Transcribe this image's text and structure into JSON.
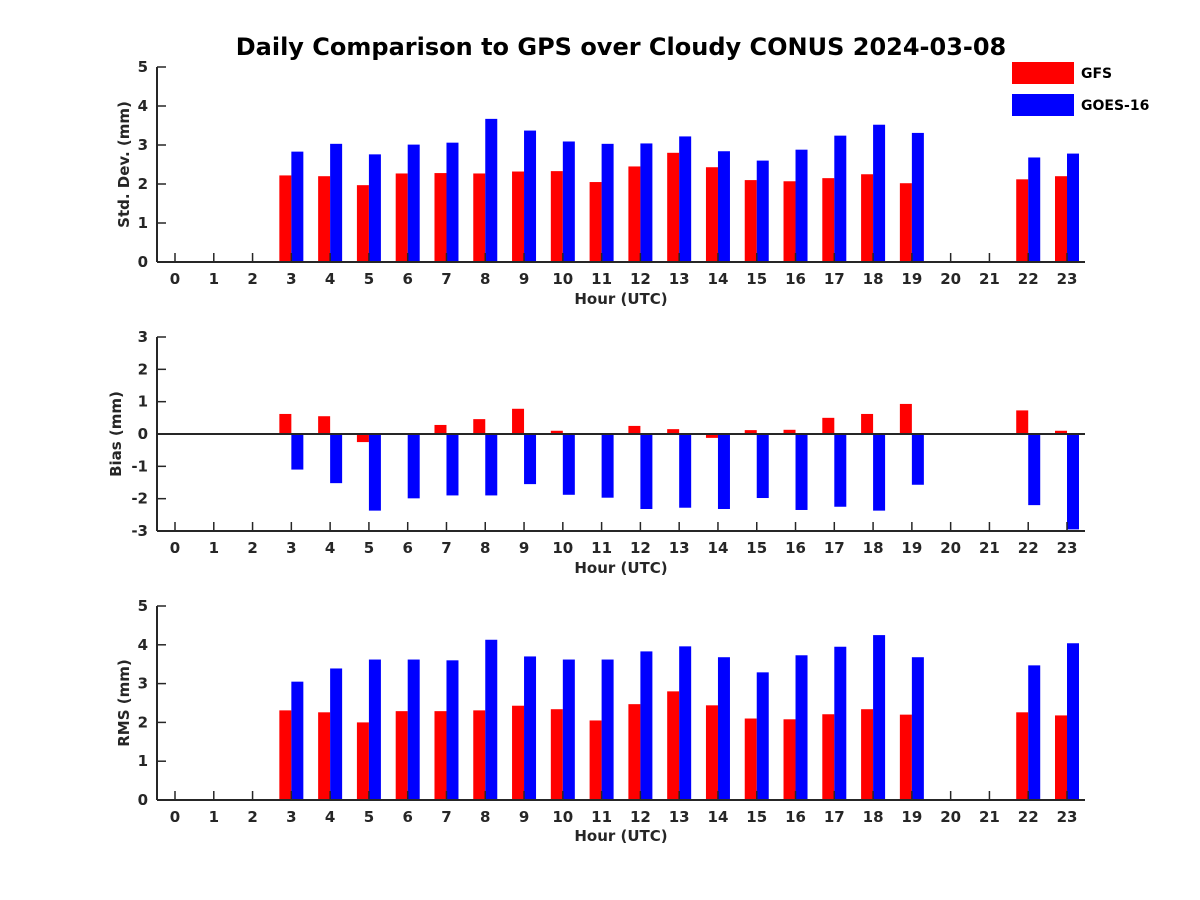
{
  "chart_data": {
    "type": "bar",
    "title": "Daily Comparison to GPS over Cloudy CONUS 2024-03-08",
    "categories": [
      "0",
      "1",
      "2",
      "3",
      "4",
      "5",
      "6",
      "7",
      "8",
      "9",
      "10",
      "11",
      "12",
      "13",
      "14",
      "15",
      "16",
      "17",
      "18",
      "19",
      "20",
      "21",
      "22",
      "23"
    ],
    "legend": {
      "placement": "top-right",
      "entries": [
        {
          "name": "GFS",
          "color": "#ff0000"
        },
        {
          "name": "GOES-16",
          "color": "#0000ff"
        }
      ]
    },
    "panels": [
      {
        "id": "std",
        "xlabel": "Hour (UTC)",
        "ylabel": "Std. Dev. (mm)",
        "ylim": [
          0,
          5
        ],
        "yticks": [
          "0",
          "1",
          "2",
          "3",
          "4",
          "5"
        ],
        "series": [
          {
            "name": "GFS",
            "color": "#ff0000",
            "values": [
              null,
              null,
              null,
              2.22,
              2.2,
              1.97,
              2.27,
              2.28,
              2.27,
              2.32,
              2.33,
              2.05,
              2.45,
              2.8,
              2.43,
              2.1,
              2.07,
              2.15,
              2.25,
              2.02,
              null,
              null,
              2.12,
              2.2
            ]
          },
          {
            "name": "GOES-16",
            "color": "#0000ff",
            "values": [
              null,
              null,
              null,
              2.83,
              3.03,
              2.76,
              3.01,
              3.06,
              3.67,
              3.37,
              3.09,
              3.03,
              3.04,
              3.22,
              2.84,
              2.6,
              2.88,
              3.24,
              3.52,
              3.31,
              null,
              null,
              2.68,
              2.78
            ]
          }
        ]
      },
      {
        "id": "bias",
        "xlabel": "Hour (UTC)",
        "ylabel": "Bias (mm)",
        "ylim": [
          -3,
          3
        ],
        "yticks": [
          "-3",
          "-2",
          "-1",
          "0",
          "1",
          "2",
          "3"
        ],
        "series": [
          {
            "name": "GFS",
            "color": "#ff0000",
            "values": [
              null,
              null,
              null,
              0.62,
              0.55,
              -0.25,
              0.02,
              0.28,
              0.46,
              0.78,
              0.1,
              0.02,
              0.25,
              0.15,
              -0.12,
              0.12,
              0.13,
              0.5,
              0.62,
              0.93,
              null,
              null,
              0.73,
              0.1
            ]
          },
          {
            "name": "GOES-16",
            "color": "#0000ff",
            "values": [
              null,
              null,
              null,
              -1.1,
              -1.52,
              -2.37,
              -1.99,
              -1.9,
              -1.9,
              -1.55,
              -1.88,
              -1.97,
              -2.32,
              -2.28,
              -2.32,
              -1.98,
              -2.35,
              -2.25,
              -2.37,
              -1.57,
              null,
              null,
              -2.2,
              -2.95
            ]
          }
        ]
      },
      {
        "id": "rms",
        "xlabel": "Hour (UTC)",
        "ylabel": "RMS (mm)",
        "ylim": [
          0,
          5
        ],
        "yticks": [
          "0",
          "1",
          "2",
          "3",
          "4",
          "5"
        ],
        "series": [
          {
            "name": "GFS",
            "color": "#ff0000",
            "values": [
              null,
              null,
              null,
              2.31,
              2.26,
              2.0,
              2.29,
              2.29,
              2.31,
              2.43,
              2.34,
              2.05,
              2.47,
              2.8,
              2.44,
              2.1,
              2.08,
              2.21,
              2.34,
              2.2,
              null,
              null,
              2.26,
              2.18
            ]
          },
          {
            "name": "GOES-16",
            "color": "#0000ff",
            "values": [
              null,
              null,
              null,
              3.05,
              3.39,
              3.62,
              3.62,
              3.6,
              4.13,
              3.7,
              3.62,
              3.62,
              3.83,
              3.96,
              3.68,
              3.29,
              3.73,
              3.95,
              4.25,
              3.68,
              null,
              null,
              3.47,
              4.04
            ]
          }
        ]
      }
    ]
  }
}
